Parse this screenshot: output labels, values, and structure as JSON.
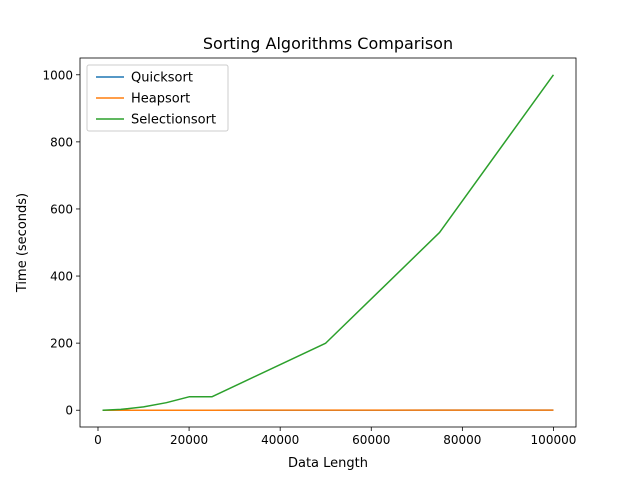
{
  "chart_data": {
    "type": "line",
    "title": "Sorting Algorithms Comparison",
    "xlabel": "Data Length",
    "ylabel": "Time (seconds)",
    "xlim": [
      -3950,
      104950
    ],
    "ylim": [
      -50,
      1050
    ],
    "xticks": [
      0,
      20000,
      40000,
      60000,
      80000,
      100000
    ],
    "xtick_labels": [
      "0",
      "20000",
      "40000",
      "60000",
      "80000",
      "100000"
    ],
    "yticks": [
      0,
      200,
      400,
      600,
      800,
      1000
    ],
    "ytick_labels": [
      "0",
      "200",
      "400",
      "600",
      "800",
      "1000"
    ],
    "grid": false,
    "legend_position": "top-left",
    "x": [
      1000,
      5000,
      10000,
      15000,
      20000,
      25000,
      50000,
      75000,
      100000
    ],
    "series": [
      {
        "name": "Quicksort",
        "color": "#1f77b4",
        "values": [
          0.001,
          0.006,
          0.013,
          0.02,
          0.028,
          0.036,
          0.08,
          0.13,
          0.18
        ]
      },
      {
        "name": "Heapsort",
        "color": "#ff7f0e",
        "values": [
          0.003,
          0.017,
          0.037,
          0.058,
          0.08,
          0.1,
          0.22,
          0.35,
          0.48
        ]
      },
      {
        "name": "Selectionsort",
        "color": "#2ca02c",
        "values": [
          0.1,
          2.5,
          10,
          22.5,
          40,
          40,
          200,
          530,
          1000
        ]
      }
    ]
  }
}
